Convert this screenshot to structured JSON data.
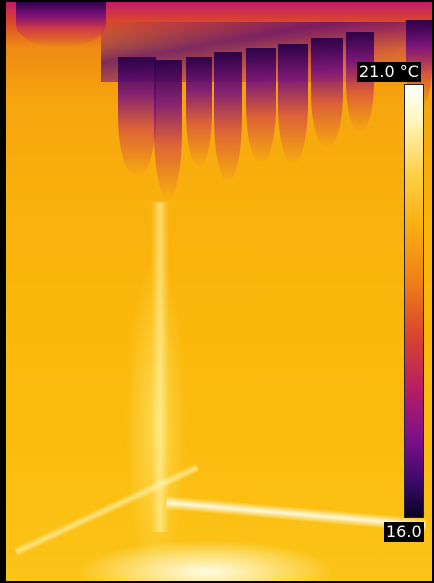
{
  "scene": {
    "description_icon": "thermal-camera-image",
    "palette": "iron"
  },
  "scale": {
    "max_label": "21.0 °C",
    "min_label": "16.0",
    "colors": {
      "hot": "#ffffff",
      "warm": "#fbb012",
      "mid": "#d9452f",
      "cool": "#7d0f8a",
      "cold": "#0a0320"
    }
  }
}
